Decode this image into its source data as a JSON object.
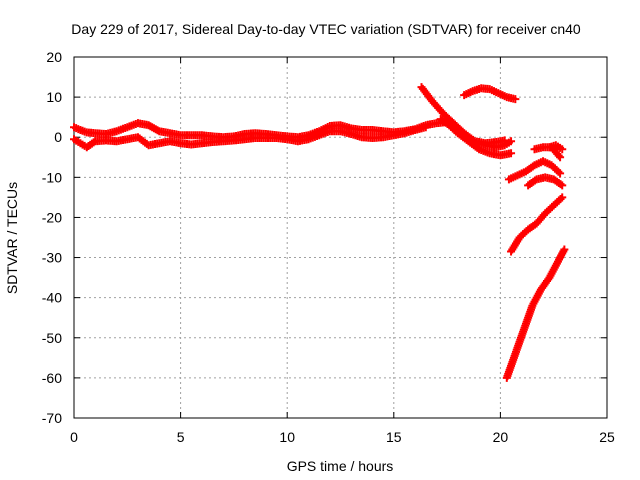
{
  "chart_data": {
    "type": "scatter",
    "title": "Day 229 of 2017, Sidereal Day-to-day VTEC variation (SDTVAR) for receiver cn40",
    "xlabel": "GPS time / hours",
    "ylabel": "SDTVAR / TECUs",
    "xlim": [
      0,
      25
    ],
    "ylim": [
      -70,
      20
    ],
    "xticks": [
      "0",
      "5",
      "10",
      "15",
      "20",
      "25"
    ],
    "yticks": [
      "20",
      "10",
      "0",
      "-10",
      "-20",
      "-30",
      "-40",
      "-50",
      "-60",
      "-70"
    ],
    "grid": true,
    "legend": "none",
    "marker": "plus",
    "color": "#ff0000",
    "series": [
      {
        "x": [
          0,
          0.3,
          0.6,
          1.0,
          1.5,
          2.0,
          2.5,
          3.0,
          3.5,
          4.0,
          4.5,
          5.0,
          5.5,
          6.0,
          6.5,
          7.0,
          7.5,
          8.0,
          8.5,
          9.0,
          9.5,
          10.0,
          10.5,
          11.0,
          11.5,
          12.0,
          12.5,
          13.0,
          13.5,
          14.0,
          14.5,
          15.0,
          15.5,
          16.0,
          16.5,
          17.0,
          17.5
        ],
        "y": [
          2.5,
          1.8,
          1.2,
          1.0,
          0.8,
          1.5,
          2.5,
          3.5,
          3.0,
          1.5,
          1.0,
          0.5,
          0.5,
          0.5,
          0.2,
          0.0,
          0.2,
          0.8,
          1.0,
          0.8,
          0.5,
          0.2,
          0.0,
          0.5,
          1.5,
          2.8,
          3.0,
          2.2,
          1.8,
          1.8,
          1.5,
          1.2,
          1.5,
          2.0,
          3.0,
          3.5,
          3.8
        ]
      },
      {
        "x": [
          0,
          0.3,
          0.6,
          1.0,
          1.5,
          2.0,
          2.5,
          3.0,
          3.5,
          4.0,
          4.5,
          5.0,
          5.5,
          6.0,
          6.5,
          7.0,
          7.5,
          8.0,
          8.5,
          9.0,
          9.5,
          10.0,
          10.5,
          11.0,
          11.5,
          12.0,
          12.5,
          13.0,
          13.5,
          14.0,
          14.5,
          15.0,
          15.5,
          16.0,
          16.5
        ],
        "y": [
          -0.5,
          -1.5,
          -2.5,
          -1.0,
          -0.8,
          -1.0,
          -0.5,
          0.0,
          -2.0,
          -1.5,
          -1.0,
          -1.5,
          -1.8,
          -1.5,
          -1.2,
          -1.0,
          -0.8,
          -0.5,
          -0.2,
          -0.2,
          -0.2,
          -0.5,
          -1.0,
          -0.5,
          0.5,
          1.5,
          1.5,
          0.8,
          0.0,
          -0.2,
          0.0,
          0.5,
          1.0,
          1.8,
          2.5
        ]
      },
      {
        "x": [
          16.3,
          16.8,
          17.3,
          17.8,
          18.3,
          18.8,
          19.3,
          19.8,
          20.2
        ],
        "y": [
          12.5,
          9.0,
          6.0,
          3.5,
          1.0,
          -1.0,
          -1.5,
          -1.2,
          -0.8
        ]
      },
      {
        "x": [
          17.2,
          17.6,
          18.0,
          18.5,
          19.0,
          19.5,
          20.0,
          20.5
        ],
        "y": [
          4.5,
          3.0,
          1.0,
          -1.0,
          -3.0,
          -4.0,
          -4.5,
          -4.0
        ]
      },
      {
        "x": [
          18.3,
          18.7,
          19.1,
          19.5,
          19.9,
          20.3,
          20.7
        ],
        "y": [
          10.5,
          11.5,
          12.2,
          12.0,
          11.0,
          10.0,
          9.5
        ]
      },
      {
        "x": [
          19.0,
          19.4,
          19.8,
          20.2,
          20.5
        ],
        "y": [
          -1.5,
          -2.0,
          -2.5,
          -2.0,
          -1.0
        ]
      },
      {
        "x": [
          20.4,
          20.8,
          21.2,
          21.6,
          22.0,
          22.4,
          22.8
        ],
        "y": [
          -10.5,
          -9.5,
          -8.5,
          -7.0,
          -6.0,
          -7.0,
          -9.0
        ]
      },
      {
        "x": [
          21.3,
          21.7,
          22.1,
          22.5,
          22.9
        ],
        "y": [
          -12.0,
          -10.5,
          -10.0,
          -10.5,
          -12.0
        ]
      },
      {
        "x": [
          20.5,
          20.9,
          21.3,
          21.7,
          22.1,
          22.5,
          22.9
        ],
        "y": [
          -28.5,
          -25.0,
          -23.0,
          -21.5,
          -19.0,
          -17.0,
          -15.0
        ]
      },
      {
        "x": [
          20.3,
          20.7,
          21.1,
          21.5,
          21.9,
          22.3,
          22.7,
          23.0
        ],
        "y": [
          -60.0,
          -54.0,
          -48.0,
          -42.0,
          -38.0,
          -35.0,
          -31.0,
          -28.0
        ]
      },
      {
        "x": [
          22.3,
          22.6,
          22.9
        ],
        "y": [
          -2.5,
          -2.0,
          -3.0
        ]
      },
      {
        "x": [
          21.6,
          22.0,
          22.4,
          22.8
        ],
        "y": [
          -3.0,
          -2.5,
          -2.5,
          -5.0
        ]
      }
    ]
  }
}
